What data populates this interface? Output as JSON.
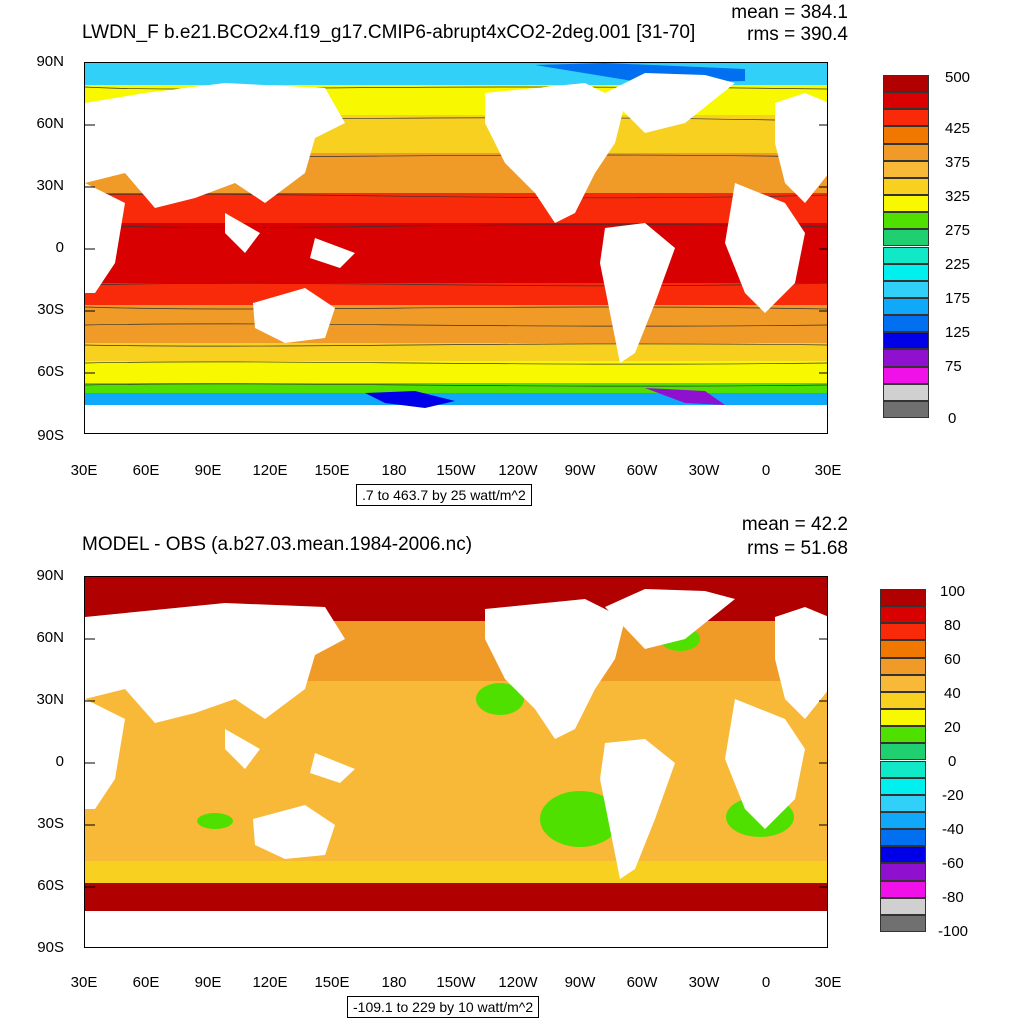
{
  "top": {
    "title": "LWDN_F b.e21.BCO2x4.f19_g17.CMIP6-abrupt4xCO2-2deg.001 [31-70]",
    "mean": "mean = 384.1",
    "rms": "rms = 390.4",
    "range": ".7 to 463.7 by 25 watt/m^2",
    "colorbar_labels": [
      "500",
      "425",
      "375",
      "325",
      "275",
      "225",
      "175",
      "125",
      "75",
      "0"
    ],
    "colorbar_colors": [
      "#b00000",
      "#d80000",
      "#f82a0a",
      "#f07800",
      "#f09a28",
      "#f8b838",
      "#f8d020",
      "#f8f800",
      "#50e000",
      "#20d070",
      "#10e8c8",
      "#00f0f0",
      "#30d0f8",
      "#10a8f8",
      "#0070f0",
      "#0000e8",
      "#9010d0",
      "#f010e8",
      "#d0d0d0",
      "#707070"
    ]
  },
  "bottom": {
    "title": "MODEL - OBS (a.b27.03.mean.1984-2006.nc)",
    "mean": "mean = 42.2",
    "rms": "rms = 51.68",
    "range": "-109.1 to 229 by 10 watt/m^2",
    "colorbar_labels": [
      "100",
      "80",
      "60",
      "40",
      "20",
      "0",
      "-20",
      "-40",
      "-60",
      "-80",
      "-100"
    ],
    "colorbar_colors": [
      "#b00000",
      "#d80000",
      "#f82a0a",
      "#f07800",
      "#f09a28",
      "#f8b838",
      "#f8d020",
      "#f8f800",
      "#50e000",
      "#20d070",
      "#10e8c8",
      "#00f0f0",
      "#30d0f8",
      "#10a8f8",
      "#0070f0",
      "#0000e8",
      "#9010d0",
      "#f010e8",
      "#d0d0d0",
      "#707070"
    ]
  },
  "axes": {
    "y_labels": [
      "90N",
      "60N",
      "30N",
      "0",
      "30S",
      "60S",
      "90S"
    ],
    "x_labels": [
      "30E",
      "60E",
      "90E",
      "120E",
      "150E",
      "180",
      "150W",
      "120W",
      "90W",
      "60W",
      "30W",
      "0",
      "30E"
    ]
  }
}
